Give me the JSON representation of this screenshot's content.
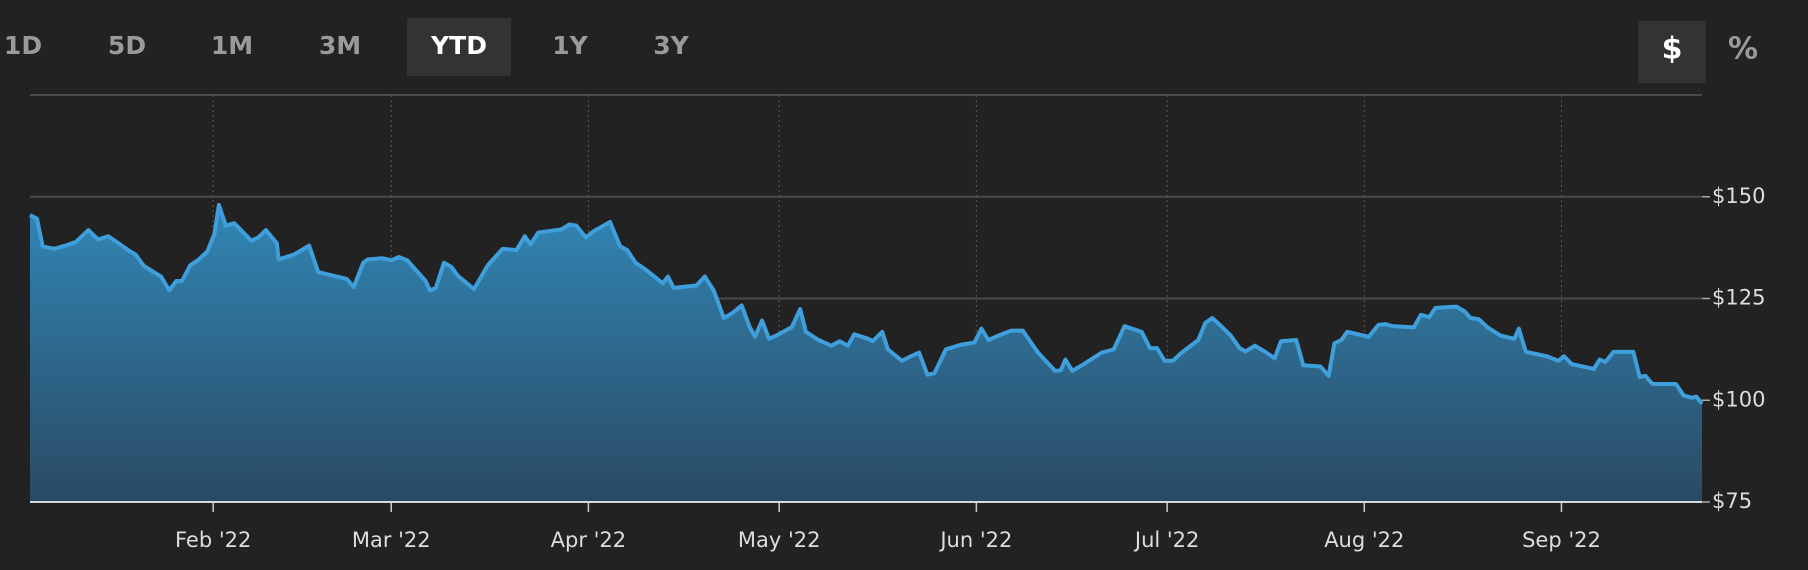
{
  "toolbar": {
    "ranges": [
      {
        "label": "1D"
      },
      {
        "label": "5D"
      },
      {
        "label": "1M"
      },
      {
        "label": "3M"
      },
      {
        "label": "YTD",
        "selected": true
      },
      {
        "label": "1Y"
      },
      {
        "label": "3Y"
      }
    ],
    "units": [
      {
        "label": "$",
        "selected": true
      },
      {
        "label": "%"
      }
    ]
  },
  "chart_data": {
    "type": "area",
    "x": [
      2.2,
      3.3,
      4.2,
      6.0,
      7.8,
      9.4,
      11.4,
      12.9,
      14.5,
      16.1,
      17.9,
      18.8,
      20.1,
      22.8,
      24.1,
      25.2,
      26.1,
      27.4,
      28.6,
      30.1,
      31.2,
      31.9,
      33.0,
      34.3,
      37.0,
      38.1,
      39.3,
      41.0,
      41.3,
      43.7,
      46.1,
      47.5,
      52.0,
      53.1,
      54.6,
      55.3,
      57.5,
      59.1,
      60.2,
      61.5,
      64.4,
      65.1,
      66.0,
      67.3,
      68.5,
      69.4,
      72.0,
      74.2,
      76.5,
      78.7,
      80.0,
      80.9,
      82.1,
      85.8,
      87.0,
      88.1,
      89.6,
      90.8,
      93.4,
      95.0,
      96.1,
      97.4,
      99.0,
      100.6,
      101.7,
      102.5,
      103.4,
      107.0,
      108.3,
      109.7,
      111.3,
      112.8,
      114.1,
      115.3,
      116.2,
      117.3,
      118.4,
      119.7,
      122.0,
      123.3,
      124.2,
      126.2,
      128.2,
      129.5,
      130.8,
      131.8,
      134.0,
      134.7,
      136.2,
      137.1,
      139.3,
      140.7,
      142.0,
      143.3,
      144.4,
      146.2,
      148.5,
      150.7,
      151.8,
      152.9,
      154.5,
      156.5,
      158.3,
      160.7,
      163.4,
      164.3,
      165.0,
      166.1,
      167.9,
      170.7,
      172.6,
      174.3,
      177.0,
      178.3,
      179.4,
      180.6,
      181.9,
      183.3,
      185.9,
      187.0,
      188.1,
      189.3,
      191.0,
      192.4,
      193.3,
      194.8,
      196.6,
      197.9,
      198.9,
      201.3,
      202.4,
      205.1,
      206.4,
      207.3,
      208.4,
      209.3,
      212.7,
      214.2,
      215.3,
      216.5,
      219.8,
      220.9,
      222.2,
      223.2,
      226.5,
      227.8,
      228.7,
      230.0,
      231.4,
      233.4,
      235.6,
      236.3,
      237.4,
      240.7,
      242.5,
      243.4,
      244.6,
      248.1,
      249.0,
      249.9,
      251.2,
      254.3,
      255.3,
      256.2,
      257.3,
      261.0,
      262.2,
      263.5,
      264.2,
      265.1
    ],
    "values": [
      145.5,
      144.6,
      137.8,
      137.2,
      138.0,
      138.9,
      141.8,
      139.5,
      140.3,
      138.6,
      136.6,
      135.8,
      133.0,
      130.4,
      127.0,
      129.3,
      129.3,
      133.2,
      134.4,
      136.6,
      140.9,
      148.0,
      142.9,
      143.5,
      139.2,
      140.0,
      141.8,
      138.6,
      134.6,
      135.8,
      138.0,
      131.5,
      129.8,
      127.8,
      133.8,
      134.6,
      134.9,
      134.4,
      135.2,
      134.4,
      129.3,
      127.0,
      127.6,
      133.8,
      132.7,
      130.7,
      127.3,
      133.2,
      137.2,
      136.9,
      140.3,
      138.3,
      141.2,
      142.0,
      143.2,
      142.9,
      140.0,
      141.5,
      143.8,
      137.8,
      136.9,
      133.8,
      132.1,
      130.1,
      128.7,
      130.4,
      127.6,
      128.2,
      130.4,
      127.0,
      120.2,
      121.6,
      123.3,
      118.2,
      115.6,
      119.6,
      115.1,
      116.0,
      118.0,
      122.4,
      116.8,
      114.8,
      113.4,
      114.5,
      113.4,
      116.2,
      115.1,
      114.5,
      116.8,
      112.5,
      109.7,
      110.8,
      111.7,
      106.3,
      106.6,
      112.5,
      113.6,
      114.2,
      117.6,
      114.8,
      115.9,
      117.1,
      117.1,
      111.7,
      107.2,
      107.4,
      110.0,
      107.2,
      108.9,
      111.7,
      112.5,
      118.2,
      116.8,
      112.8,
      112.8,
      109.7,
      109.7,
      111.7,
      114.8,
      119.0,
      120.2,
      118.5,
      115.9,
      112.8,
      112.0,
      113.4,
      111.7,
      110.3,
      114.5,
      114.8,
      108.6,
      108.3,
      106.0,
      114.0,
      114.8,
      116.8,
      115.6,
      118.5,
      118.7,
      118.2,
      117.9,
      121.0,
      120.4,
      122.7,
      123.0,
      121.8,
      120.2,
      119.9,
      117.9,
      115.9,
      115.1,
      117.6,
      111.9,
      110.8,
      109.7,
      110.8,
      108.9,
      107.7,
      110.0,
      109.4,
      111.9,
      111.9,
      105.7,
      106.0,
      104.0,
      104.0,
      101.2,
      100.6,
      100.9,
      99.1
    ],
    "color": "#3f9fdc",
    "xlim": [
      2.2,
      265.1
    ],
    "xticks": [
      {
        "value": 31,
        "label": "Feb '22"
      },
      {
        "value": 59,
        "label": "Mar '22"
      },
      {
        "value": 90,
        "label": "Apr '22"
      },
      {
        "value": 120,
        "label": "May '22"
      },
      {
        "value": 151,
        "label": "Jun '22"
      },
      {
        "value": 181,
        "label": "Jul '22"
      },
      {
        "value": 212,
        "label": "Aug '22"
      },
      {
        "value": 243,
        "label": "Sep '22"
      }
    ],
    "ylim": [
      75,
      175
    ],
    "yticks": [
      {
        "value": 75,
        "label": "$75"
      },
      {
        "value": 100,
        "label": "$100"
      },
      {
        "value": 125,
        "label": "$125"
      },
      {
        "value": 150,
        "label": "$150"
      }
    ],
    "grid": true
  }
}
